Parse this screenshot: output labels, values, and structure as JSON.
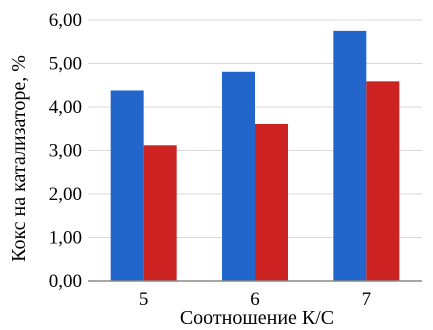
{
  "chart_data": {
    "type": "bar",
    "categories": [
      "5",
      "6",
      "7"
    ],
    "series": [
      {
        "values": [
          4.38,
          4.81,
          5.75
        ],
        "color": "#2266cc"
      },
      {
        "values": [
          3.12,
          3.61,
          4.59
        ],
        "color": "#cc2222"
      }
    ],
    "xlabel": "Соотношение К/С",
    "ylabel": "Кокс на катализаторе, %",
    "ylim": [
      0,
      6
    ],
    "yticks": [
      "0,00",
      "1,00",
      "2,00",
      "3,00",
      "4,00",
      "5,00",
      "6,00"
    ],
    "grid": true,
    "legend": "none"
  }
}
